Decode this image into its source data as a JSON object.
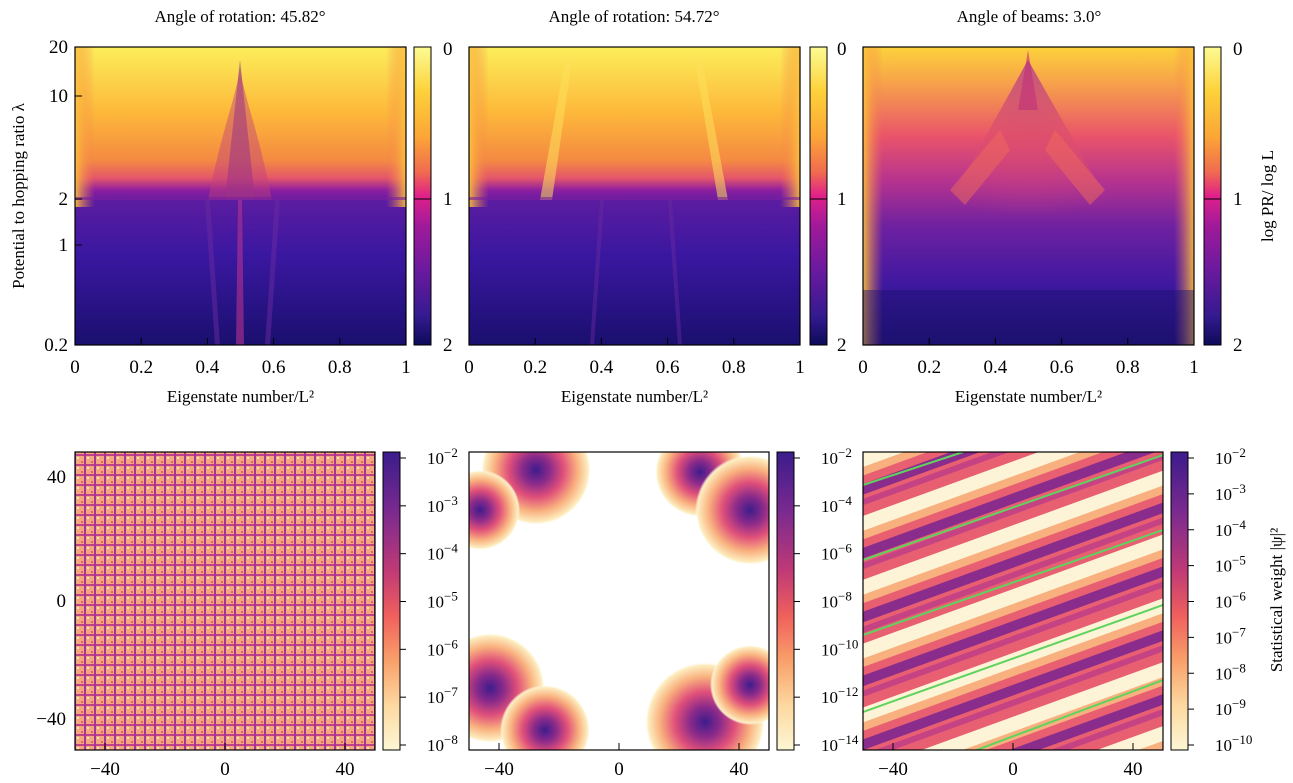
{
  "colors": {
    "magma_stops": [
      "#fcfdbf",
      "#fed395",
      "#fca636",
      "#f1605d",
      "#e7298a",
      "#b63679",
      "#721f81",
      "#3b0f70",
      "#1c1044",
      "#000004"
    ],
    "plasma_stops": [
      "#0d0887",
      "#46039f",
      "#7201a8",
      "#9c179e",
      "#bd3786",
      "#d8576b",
      "#ed7953",
      "#fb9f3a",
      "#fdca26",
      "#f0f921"
    ],
    "overlay_line": "#5fd35f"
  },
  "chart_data": [
    {
      "type": "heatmap",
      "title": "Angle of rotation: 45.82°",
      "xlabel": "Eigenstate number/L²",
      "ylabel": "Potential to hopping ratio λ",
      "x_range": [
        0,
        1
      ],
      "y_range": [
        0.2,
        20
      ],
      "y_scale": "log",
      "x_ticks": [
        "0",
        "0.2",
        "0.4",
        "0.6",
        "0.8",
        "1"
      ],
      "y_ticks": [
        "0.2",
        "1",
        "2",
        "10",
        "20"
      ],
      "colorbar": {
        "ticks": [
          "0",
          "1",
          "2"
        ],
        "range": [
          0,
          2
        ],
        "label": ""
      }
    },
    {
      "type": "heatmap",
      "title": "Angle of rotation: 54.72°",
      "xlabel": "Eigenstate number/L²",
      "x_range": [
        0,
        1
      ],
      "y_range": [
        0.2,
        20
      ],
      "y_scale": "log",
      "x_ticks": [
        "0",
        "0.2",
        "0.4",
        "0.6",
        "0.8",
        "1"
      ],
      "colorbar": {
        "ticks": [
          "0",
          "1",
          "2"
        ],
        "range": [
          0,
          2
        ],
        "label": ""
      }
    },
    {
      "type": "heatmap",
      "title": "Angle of beams: 3.0°",
      "xlabel": "Eigenstate number/L²",
      "x_range": [
        0,
        1
      ],
      "y_range": [
        0.2,
        20
      ],
      "y_scale": "log",
      "x_ticks": [
        "0",
        "0.2",
        "0.4",
        "0.6",
        "0.8",
        "1"
      ],
      "colorbar": {
        "ticks": [
          "0",
          "1",
          "2"
        ],
        "range": [
          0,
          2
        ],
        "label": "log PR/ log L"
      }
    },
    {
      "type": "heatmap",
      "x_range": [
        -50,
        50
      ],
      "y_range": [
        -50,
        50
      ],
      "x_ticks": [
        "−40",
        "0",
        "40"
      ],
      "y_ticks": [
        "40",
        "0",
        "−40"
      ],
      "colorbar": {
        "scale": "log",
        "exponents": [
          "−2",
          "−3",
          "−4",
          "−5",
          "−6",
          "−7",
          "−8"
        ]
      }
    },
    {
      "type": "heatmap",
      "x_range": [
        -50,
        50
      ],
      "y_range": [
        -50,
        50
      ],
      "x_ticks": [
        "−40",
        "0",
        "40"
      ],
      "colorbar": {
        "scale": "log",
        "exponents": [
          "−2",
          "−4",
          "−6",
          "−8",
          "−10",
          "−12",
          "−14"
        ]
      }
    },
    {
      "type": "heatmap",
      "x_range": [
        -50,
        50
      ],
      "y_range": [
        -50,
        50
      ],
      "x_ticks": [
        "−40",
        "0",
        "40"
      ],
      "colorbar": {
        "scale": "log",
        "exponents": [
          "−2",
          "−3",
          "−4",
          "−5",
          "−6",
          "−7",
          "−8",
          "−9",
          "−10"
        ],
        "label": "Statistical weight |ψ|²"
      }
    }
  ]
}
